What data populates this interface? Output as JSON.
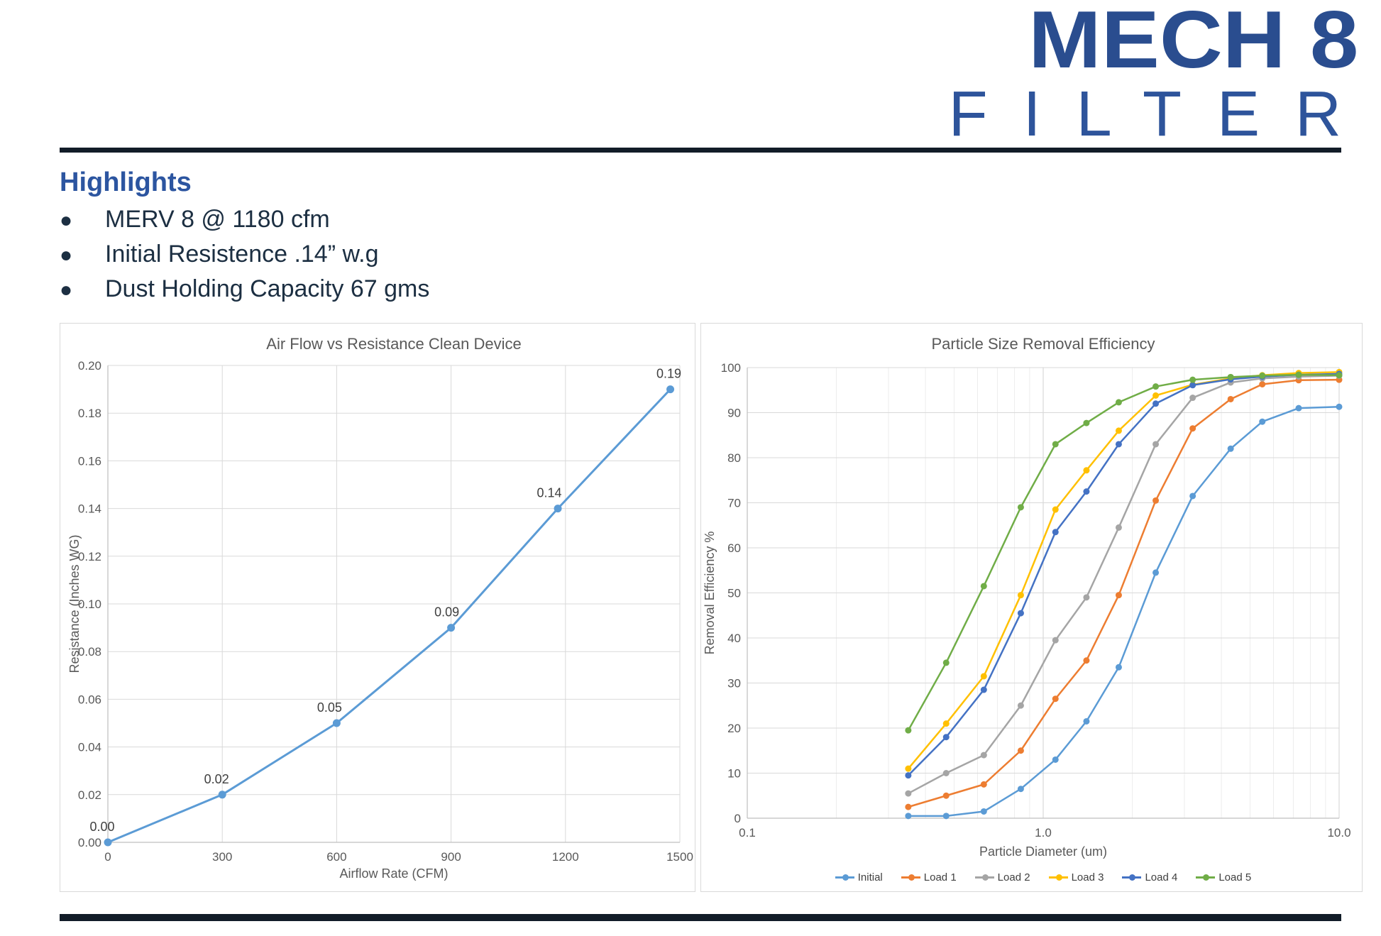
{
  "header": {
    "title": "MECH 8",
    "subtitle": "FILTER"
  },
  "highlights": {
    "heading": "Highlights",
    "items": [
      "MERV 8 @ 1180 cfm",
      "Initial Resistence .14” w.g",
      "Dust Holding Capacity 67 gms"
    ]
  },
  "colors": {
    "brand_blue": "#2A4D8F",
    "brand_blue_light": "#2E549B",
    "divider_navy": "#121C28",
    "grid_gray": "#D9D9D9",
    "axis_gray": "#BFBFBF",
    "tick_text": "#595959"
  },
  "chart_data": [
    {
      "type": "line",
      "title": "Air Flow vs Resistance Clean Device",
      "xlabel": "Airflow Rate (CFM)",
      "ylabel": "Resistance (Inches WG)",
      "x_scale": "linear",
      "xlim": [
        0,
        1500
      ],
      "xtick_step": 300,
      "ylim": [
        0,
        0.2
      ],
      "ytick_step": 0.02,
      "grid": true,
      "line_color": "#5B9BD5",
      "x": [
        0,
        300,
        600,
        900,
        1180,
        1475
      ],
      "values": [
        0.0,
        0.02,
        0.05,
        0.09,
        0.14,
        0.19
      ],
      "point_labels": [
        "0.00",
        "0.02",
        "0.05",
        "0.09",
        "0.14",
        "0.19"
      ]
    },
    {
      "type": "line",
      "title": "Particle Size Removal Efficiency",
      "xlabel": "Particle Diameter (um)",
      "ylabel": "Removal Efficiency %",
      "x_scale": "log",
      "xlim": [
        0.1,
        10
      ],
      "xticks": [
        0.1,
        1,
        10
      ],
      "xticklabels": [
        "0.1",
        "1.0",
        "10.0"
      ],
      "ylim": [
        0,
        100
      ],
      "ytick_step": 10,
      "grid": true,
      "legend_position": "bottom",
      "x": [
        0.35,
        0.47,
        0.63,
        0.84,
        1.1,
        1.4,
        1.8,
        2.4,
        3.2,
        4.3,
        5.5,
        7.3,
        10
      ],
      "series": [
        {
          "name": "Initial",
          "color": "#5B9BD5",
          "values": [
            0.5,
            0.5,
            1.5,
            6.5,
            13,
            21.5,
            33.5,
            54.5,
            71.5,
            82,
            88,
            91,
            91.3
          ]
        },
        {
          "name": "Load 1",
          "color": "#ED7D31",
          "values": [
            2.5,
            5,
            7.5,
            15,
            26.5,
            35,
            49.5,
            70.5,
            86.5,
            93,
            96.3,
            97.2,
            97.3
          ]
        },
        {
          "name": "Load 2",
          "color": "#A5A5A5",
          "values": [
            5.5,
            10,
            14,
            25,
            39.5,
            49,
            64.5,
            83,
            93.3,
            96.7,
            97.6,
            98,
            98.2
          ]
        },
        {
          "name": "Load 3",
          "color": "#FFC000",
          "values": [
            11,
            21,
            31.5,
            49.5,
            68.5,
            77.2,
            86,
            93.8,
            96.2,
            97.6,
            98.3,
            98.8,
            99
          ]
        },
        {
          "name": "Load 4",
          "color": "#4472C4",
          "values": [
            9.5,
            18,
            28.5,
            45.5,
            63.5,
            72.5,
            83,
            92,
            96.1,
            97.4,
            98,
            98.4,
            98.6
          ]
        },
        {
          "name": "Load 5",
          "color": "#70AD47",
          "values": [
            19.5,
            34.5,
            51.5,
            69,
            83,
            87.7,
            92.3,
            95.8,
            97.3,
            97.9,
            98.2,
            98.4,
            98.3
          ]
        }
      ]
    }
  ]
}
